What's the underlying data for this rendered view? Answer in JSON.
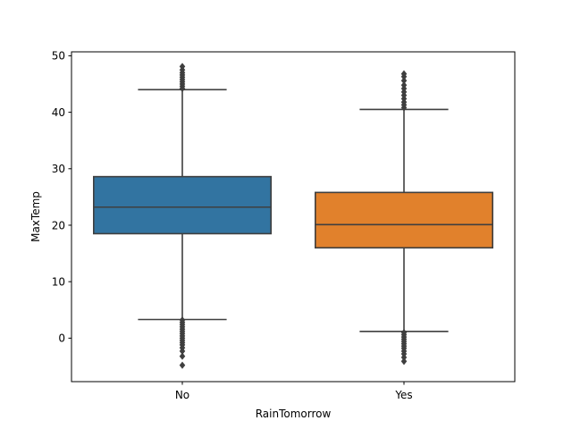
{
  "chart_data": {
    "type": "box",
    "title": "",
    "xlabel": "RainTomorrow",
    "ylabel": "MaxTemp",
    "categories": [
      "No",
      "Yes"
    ],
    "ylim": [
      -7.7,
      50.7
    ],
    "yticks": [
      0,
      10,
      20,
      30,
      40,
      50
    ],
    "grid": false,
    "series": [
      {
        "category": "No",
        "color": "#3274a1",
        "whisker_low": 3.3,
        "q1": 18.5,
        "median": 23.2,
        "q3": 28.6,
        "whisker_high": 44.0,
        "outliers_low": [
          3.2,
          2.8,
          2.4,
          2.0,
          1.6,
          1.2,
          0.8,
          0.4,
          0.0,
          -0.4,
          -0.8,
          -1.2,
          -1.7,
          -2.3,
          -3.2,
          -4.8
        ],
        "outliers_high": [
          44.2,
          44.6,
          45.0,
          45.4,
          45.8,
          46.2,
          46.6,
          47.0,
          47.5,
          48.1
        ]
      },
      {
        "category": "Yes",
        "color": "#e1812c",
        "whisker_low": 1.2,
        "q1": 16.0,
        "median": 20.1,
        "q3": 25.8,
        "whisker_high": 40.5,
        "outliers_low": [
          1.0,
          0.6,
          0.2,
          -0.2,
          -0.6,
          -1.0,
          -1.4,
          -1.8,
          -2.3,
          -2.8,
          -3.4,
          -4.1
        ],
        "outliers_high": [
          40.8,
          41.3,
          41.8,
          42.4,
          43.0,
          43.6,
          44.2,
          44.8,
          45.6,
          46.3,
          46.8
        ]
      }
    ]
  }
}
